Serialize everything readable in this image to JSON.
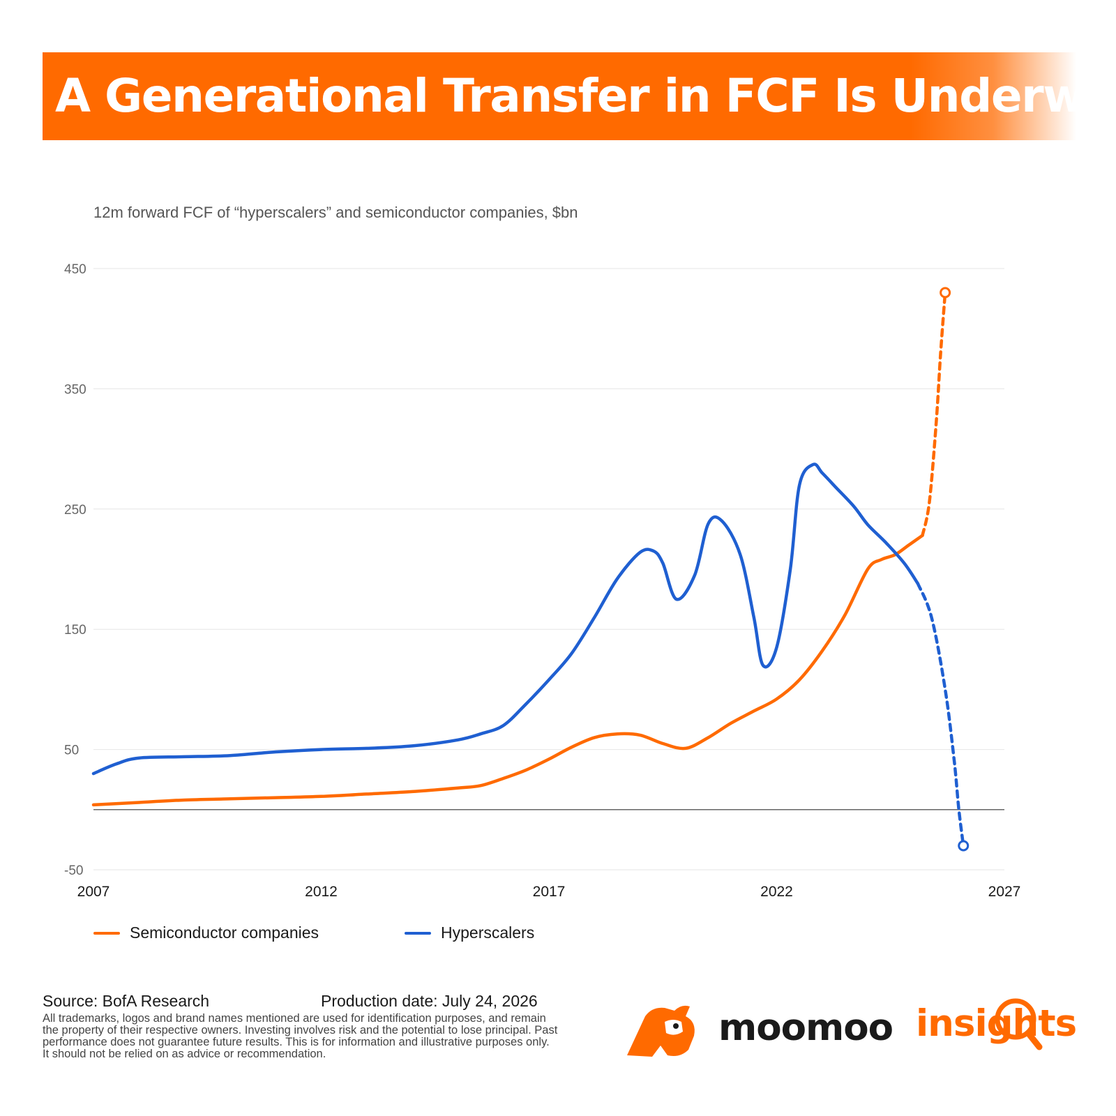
{
  "banner": {
    "title": "A Generational Transfer in FCF Is Underway"
  },
  "chart_data": {
    "type": "line",
    "title": "A Generational Transfer in FCF Is Underway",
    "subtitle": "12m forward FCF of “hyperscalers” and semiconductor companies, $bn",
    "xlabel": "",
    "ylabel": "",
    "xlim": [
      2007,
      2027
    ],
    "ylim": [
      -50,
      450
    ],
    "x_ticks": [
      2007,
      2012,
      2017,
      2022,
      2027
    ],
    "y_ticks": [
      -50,
      50,
      150,
      250,
      350,
      450
    ],
    "grid": true,
    "legend_position": "bottom-left",
    "series": [
      {
        "name": "Semiconductor companies",
        "color": "#ff6a00",
        "points": [
          [
            2007.0,
            4
          ],
          [
            2008.0,
            6
          ],
          [
            2009.0,
            8
          ],
          [
            2010.0,
            9
          ],
          [
            2011.0,
            10
          ],
          [
            2012.0,
            11
          ],
          [
            2013.0,
            13
          ],
          [
            2014.0,
            15
          ],
          [
            2015.0,
            18
          ],
          [
            2015.5,
            20
          ],
          [
            2016.0,
            26
          ],
          [
            2016.5,
            33
          ],
          [
            2017.0,
            42
          ],
          [
            2017.5,
            52
          ],
          [
            2018.0,
            60
          ],
          [
            2018.5,
            63
          ],
          [
            2019.0,
            62
          ],
          [
            2019.5,
            55
          ],
          [
            2020.0,
            51
          ],
          [
            2020.5,
            60
          ],
          [
            2021.0,
            72
          ],
          [
            2021.5,
            82
          ],
          [
            2022.0,
            92
          ],
          [
            2022.5,
            108
          ],
          [
            2023.0,
            132
          ],
          [
            2023.5,
            162
          ],
          [
            2024.0,
            200
          ],
          [
            2024.3,
            208
          ],
          [
            2024.6,
            212
          ],
          [
            2024.9,
            220
          ],
          [
            2025.2,
            228
          ]
        ],
        "projected_points": [
          [
            2025.2,
            228
          ],
          [
            2025.35,
            255
          ],
          [
            2025.5,
            320
          ],
          [
            2025.6,
            380
          ],
          [
            2025.7,
            430
          ]
        ]
      },
      {
        "name": "Hyperscalers",
        "color": "#1f5fd1",
        "points": [
          [
            2007.0,
            30
          ],
          [
            2007.5,
            38
          ],
          [
            2008.0,
            43
          ],
          [
            2009.0,
            44
          ],
          [
            2010.0,
            45
          ],
          [
            2011.0,
            48
          ],
          [
            2012.0,
            50
          ],
          [
            2013.0,
            51
          ],
          [
            2014.0,
            53
          ],
          [
            2015.0,
            58
          ],
          [
            2015.5,
            63
          ],
          [
            2016.0,
            70
          ],
          [
            2016.5,
            88
          ],
          [
            2017.0,
            108
          ],
          [
            2017.5,
            130
          ],
          [
            2018.0,
            160
          ],
          [
            2018.5,
            192
          ],
          [
            2019.0,
            214
          ],
          [
            2019.3,
            215
          ],
          [
            2019.5,
            205
          ],
          [
            2019.8,
            175
          ],
          [
            2020.2,
            195
          ],
          [
            2020.5,
            238
          ],
          [
            2020.8,
            240
          ],
          [
            2021.2,
            212
          ],
          [
            2021.5,
            160
          ],
          [
            2021.7,
            120
          ],
          [
            2022.0,
            135
          ],
          [
            2022.3,
            200
          ],
          [
            2022.5,
            270
          ],
          [
            2022.8,
            287
          ],
          [
            2023.0,
            280
          ],
          [
            2023.3,
            268
          ],
          [
            2023.7,
            252
          ],
          [
            2024.0,
            237
          ],
          [
            2024.4,
            222
          ],
          [
            2024.8,
            205
          ],
          [
            2025.1,
            188
          ]
        ],
        "projected_points": [
          [
            2025.1,
            188
          ],
          [
            2025.4,
            160
          ],
          [
            2025.7,
            100
          ],
          [
            2025.9,
            40
          ],
          [
            2026.0,
            0
          ],
          [
            2026.1,
            -30
          ]
        ]
      }
    ]
  },
  "legend": {
    "items": [
      {
        "label": "Semiconductor companies",
        "color": "#ff6a00"
      },
      {
        "label": "Hyperscalers",
        "color": "#1f5fd1"
      }
    ]
  },
  "footer": {
    "source": "Source: BofA Research",
    "production_date": "Production date: July 24, 2026",
    "disclaimer": "All trademarks, logos and brand names mentioned are used for identification purposes, and remain the property of their respective owners. Investing involves risk and the potential to lose principal. Past performance does not guarantee future results. This is for information and illustrative purposes only. It should not be relied on as advice or recommendation."
  },
  "brand": {
    "name": "moomoo",
    "product": "insights",
    "accent_color": "#ff6a00",
    "mascot_icon": "bull-head-icon",
    "magnifier_icon": "magnifier-icon"
  }
}
